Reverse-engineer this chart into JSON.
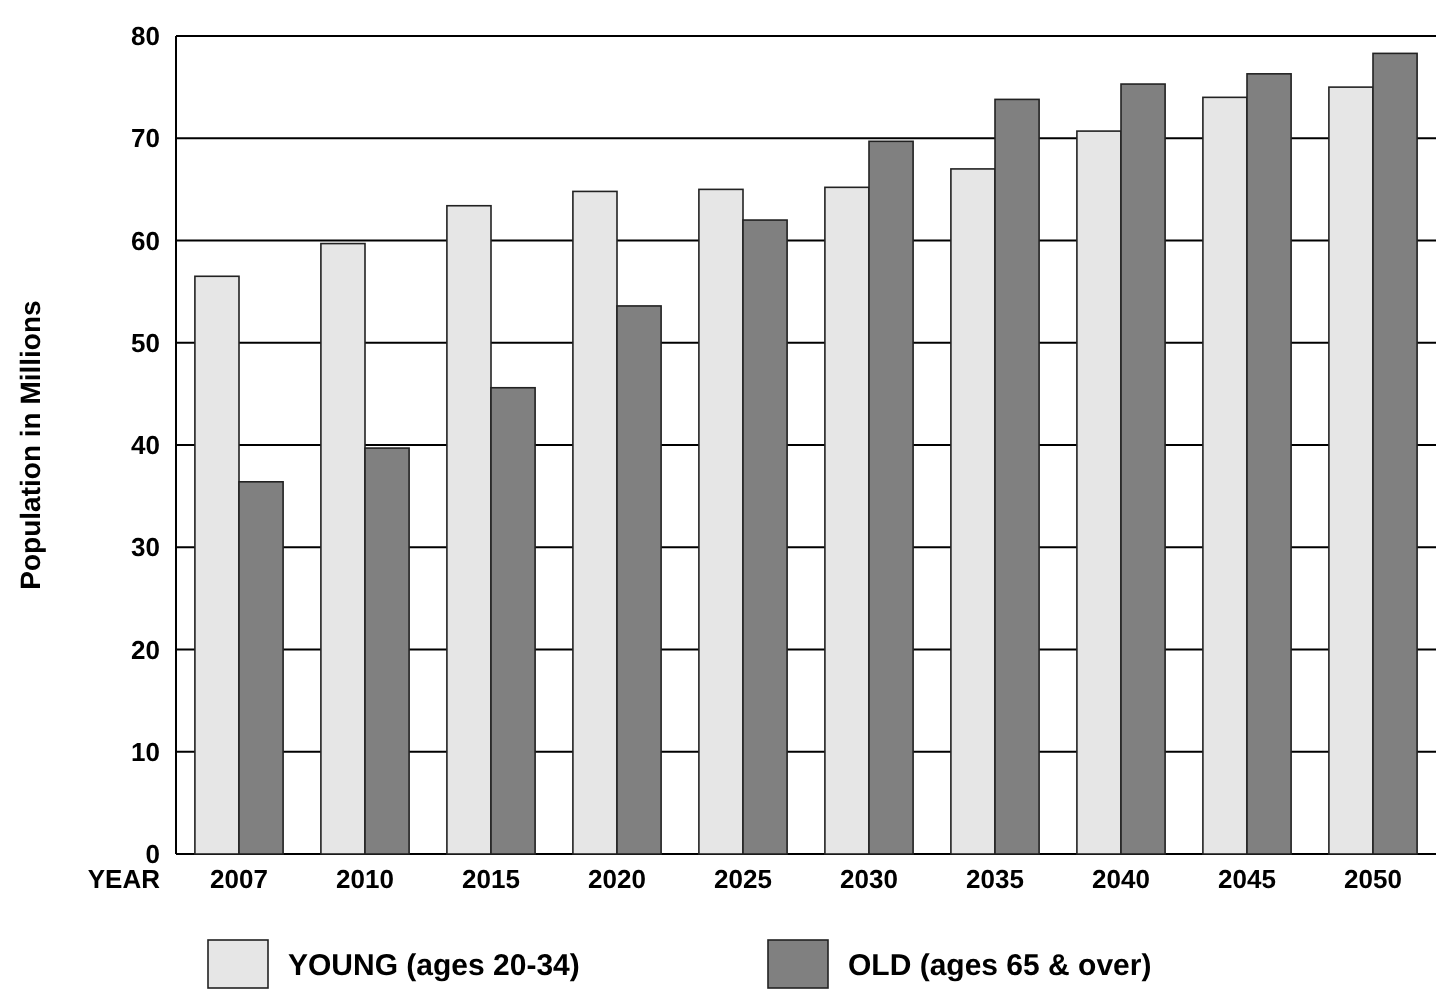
{
  "chart_data": {
    "type": "bar",
    "xlabel": "YEAR",
    "ylabel": "Population in Millions",
    "categories": [
      "2007",
      "2010",
      "2015",
      "2020",
      "2025",
      "2030",
      "2035",
      "2040",
      "2045",
      "2050"
    ],
    "series": [
      {
        "name": "YOUNG (ages 20-34)",
        "color": "#e6e6e6",
        "values": [
          56.5,
          59.7,
          63.4,
          64.8,
          65,
          65.2,
          67,
          70.7,
          74,
          75
        ]
      },
      {
        "name": "OLD (ages 65 & over)",
        "color": "#808080",
        "values": [
          36.4,
          39.7,
          45.6,
          53.6,
          62,
          69.7,
          73.8,
          75.3,
          76.3,
          78.3
        ]
      }
    ],
    "ylim": [
      0,
      80
    ],
    "yticks": [
      0,
      10,
      20,
      30,
      40,
      50,
      60,
      70,
      80
    ],
    "grid": "y",
    "legend": "bottom"
  }
}
